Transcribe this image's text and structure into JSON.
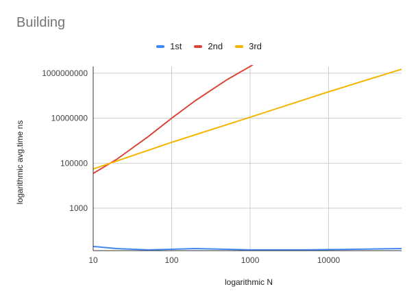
{
  "chart_data": {
    "type": "line",
    "title": "Building",
    "xlabel": "logarithmic N",
    "ylabel": "logarithmic avg.time ns",
    "x_scale": "log",
    "y_scale": "log",
    "xlim": [
      10,
      85000
    ],
    "ylim": [
      13,
      2000000000
    ],
    "x_ticks": [
      10,
      100,
      1000,
      10000
    ],
    "x_tick_labels": [
      "10",
      "100",
      "1000",
      "10000"
    ],
    "y_ticks": [
      1000,
      100000,
      10000000,
      1000000000
    ],
    "y_tick_labels": [
      "1000",
      "100000",
      "10000000",
      "1000000000"
    ],
    "grid": true,
    "legend_position": "top",
    "series": [
      {
        "name": "1st",
        "color": "#4285f4",
        "x": [
          10,
          20,
          50,
          100,
          200,
          500,
          1000,
          5000,
          20000,
          85000
        ],
        "y": [
          20,
          16,
          14,
          15,
          16,
          15,
          14,
          14,
          15,
          16
        ]
      },
      {
        "name": "2nd",
        "color": "#db4437",
        "x": [
          10,
          20,
          50,
          100,
          200,
          500,
          1000,
          1300
        ],
        "y": [
          35000,
          150000,
          1500000,
          10000000,
          60000000,
          500000000,
          2000000000,
          3500000000
        ]
      },
      {
        "name": "3rd",
        "color": "#f4b400",
        "x": [
          10,
          100,
          1000,
          10000,
          85000
        ],
        "y": [
          55000,
          850000,
          11000000,
          150000000,
          1500000000
        ]
      }
    ]
  }
}
